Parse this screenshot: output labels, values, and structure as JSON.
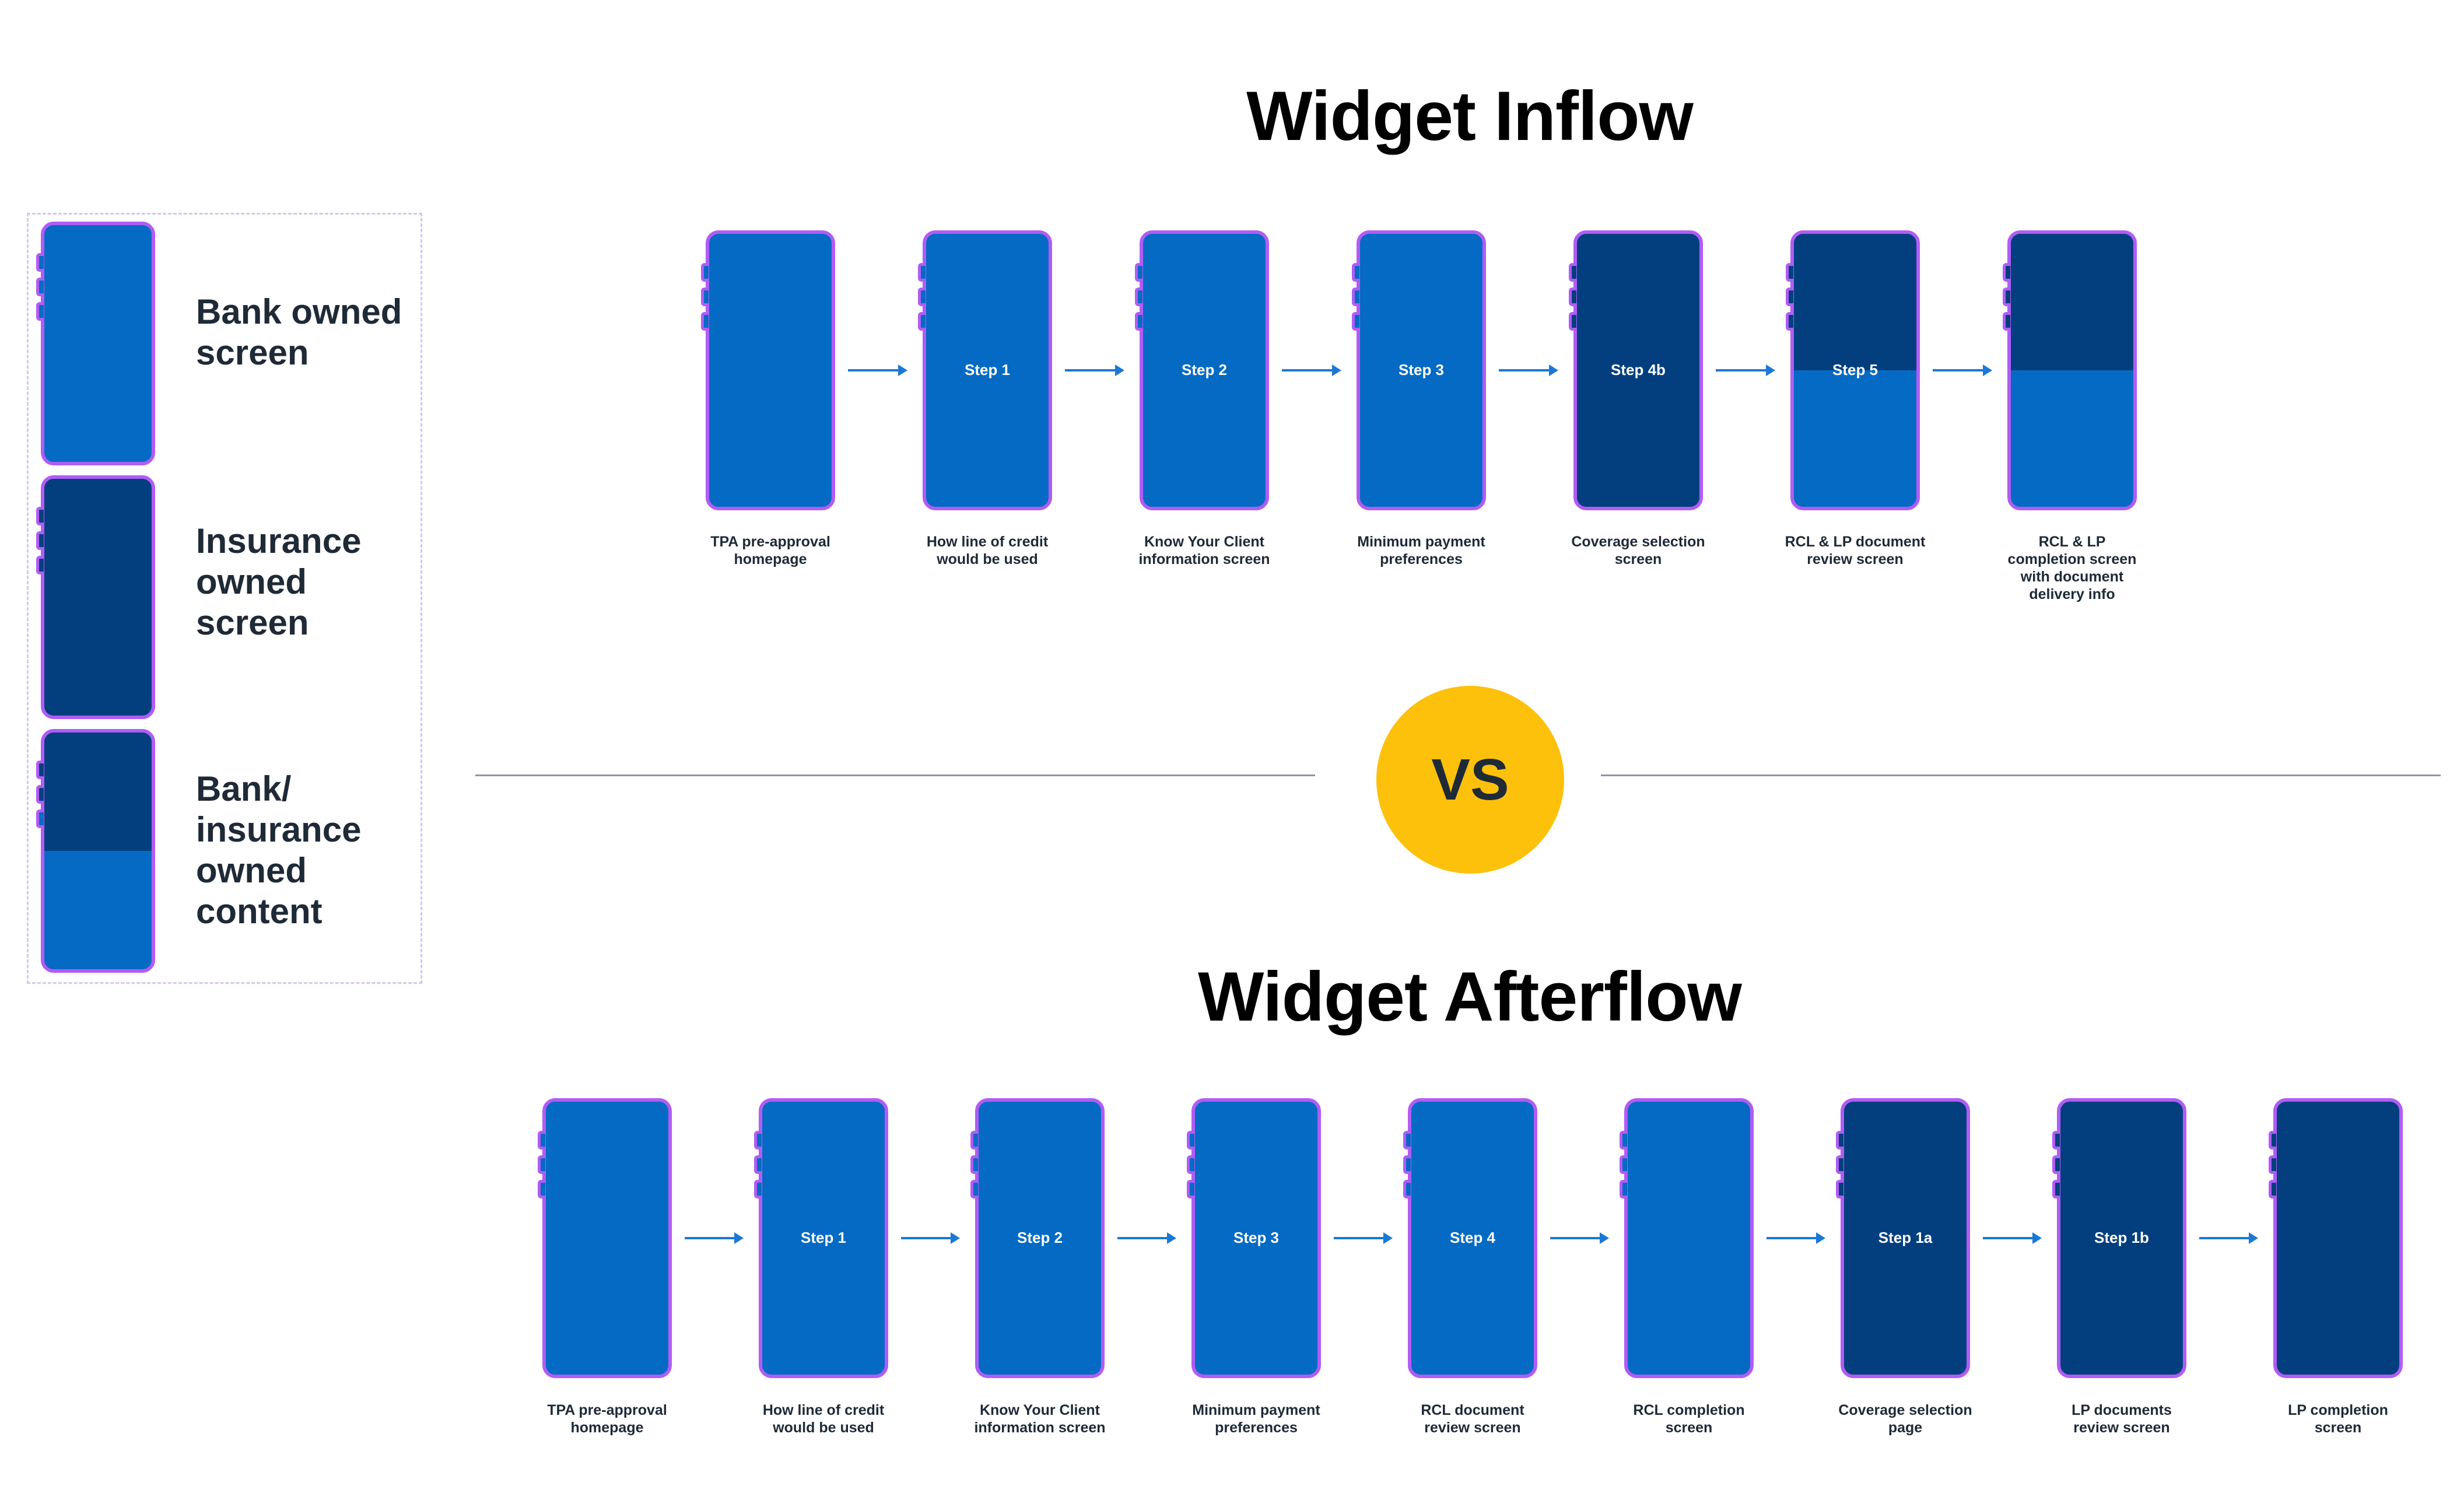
{
  "legend": {
    "bank_label": "Bank owned screen",
    "insurance_label": "Insurance owned screen",
    "mixed_label": "Bank/ insurance owned content"
  },
  "inflow": {
    "title": "Widget Inflow",
    "screens": [
      {
        "step": "",
        "caption_lines": [
          "TPA pre-approval",
          "homepage"
        ],
        "owner": "bank"
      },
      {
        "step": "Step 1",
        "caption_lines": [
          "How line of credit",
          "would be used"
        ],
        "owner": "bank"
      },
      {
        "step": "Step 2",
        "caption_lines": [
          "Know Your Client",
          "information screen"
        ],
        "owner": "bank"
      },
      {
        "step": "Step 3",
        "caption_lines": [
          "Minimum payment",
          "preferences"
        ],
        "owner": "bank"
      },
      {
        "step": "Step 4b",
        "caption_lines": [
          "Coverage selection",
          "screen"
        ],
        "owner": "insurance"
      },
      {
        "step": "Step 5",
        "caption_lines": [
          "RCL & LP document",
          "review screen"
        ],
        "owner": "mixed"
      },
      {
        "step": "",
        "caption_lines": [
          "RCL & LP",
          "completion screen",
          "with document",
          "delivery info"
        ],
        "owner": "mixed"
      }
    ]
  },
  "vs_label": "VS",
  "afterflow": {
    "title": "Widget Afterflow",
    "screens": [
      {
        "step": "",
        "caption_lines": [
          "TPA pre-approval",
          "homepage"
        ],
        "owner": "bank"
      },
      {
        "step": "Step 1",
        "caption_lines": [
          "How line of credit",
          "would be used"
        ],
        "owner": "bank"
      },
      {
        "step": "Step 2",
        "caption_lines": [
          "Know Your Client",
          "information screen"
        ],
        "owner": "bank"
      },
      {
        "step": "Step 3",
        "caption_lines": [
          "Minimum payment",
          "preferences"
        ],
        "owner": "bank"
      },
      {
        "step": "Step 4",
        "caption_lines": [
          "RCL document",
          "review screen"
        ],
        "owner": "bank"
      },
      {
        "step": "",
        "caption_lines": [
          "RCL completion",
          "screen"
        ],
        "owner": "bank"
      },
      {
        "step": "Step 1a",
        "caption_lines": [
          "Coverage selection",
          "page"
        ],
        "owner": "insurance"
      },
      {
        "step": "Step 1b",
        "caption_lines": [
          "LP documents",
          "review screen"
        ],
        "owner": "insurance"
      },
      {
        "step": "",
        "caption_lines": [
          "LP completion",
          "screen"
        ],
        "owner": "insurance"
      }
    ]
  },
  "colors": {
    "bank": "#046ac3",
    "insurance": "#033f7e",
    "phone_border": "#b15cf5",
    "vs_circle": "#fdc10b",
    "arrow": "#1c78d6"
  }
}
